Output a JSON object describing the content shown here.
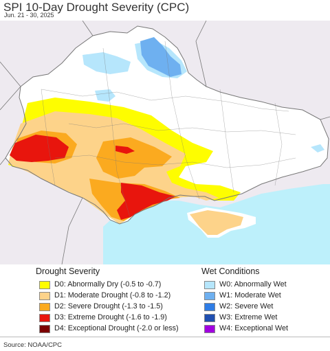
{
  "header": {
    "title": "SPI 10-Day Drought Severity (CPC)",
    "subtitle": "Jun. 21 - 30, 2025"
  },
  "colors": {
    "land": "#ffffff",
    "outside": "#eeeaf0",
    "sea": "#bdf0fb",
    "border": "#777777",
    "D0": "#fefd00",
    "D1": "#fdd38a",
    "D2": "#fbaa1f",
    "D3": "#e8150d",
    "D4": "#7c0101",
    "W0": "#b6e6fc",
    "W1": "#6eb0f0",
    "W2": "#2f7de5",
    "W3": "#1f4fb0",
    "W4": "#a100e0"
  },
  "legend": {
    "drought": {
      "heading": "Drought Severity",
      "items": [
        {
          "code": "D0",
          "label": "D0: Abnormally Dry (-0.5 to -0.7)",
          "color": "#fefd00"
        },
        {
          "code": "D1",
          "label": "D1: Moderate Drought (-0.8 to -1.2)",
          "color": "#fdd38a"
        },
        {
          "code": "D2",
          "label": "D2: Severe Drought (-1.3 to -1.5)",
          "color": "#fbaa1f"
        },
        {
          "code": "D3",
          "label": "D3: Extreme Drought (-1.6 to -1.9)",
          "color": "#e8150d"
        },
        {
          "code": "D4",
          "label": "D4: Exceptional Drought (-2.0 or less)",
          "color": "#7c0101"
        }
      ]
    },
    "wet": {
      "heading": "Wet Conditions",
      "items": [
        {
          "code": "W0",
          "label": "W0: Abnormally Wet",
          "color": "#b6e6fc"
        },
        {
          "code": "W1",
          "label": "W1: Moderate Wet",
          "color": "#6eb0f0"
        },
        {
          "code": "W2",
          "label": "W2: Severe Wet",
          "color": "#2f7de5"
        },
        {
          "code": "W3",
          "label": "W3: Extreme Wet",
          "color": "#1f4fb0"
        },
        {
          "code": "W4",
          "label": "W4: Exceptional Wet",
          "color": "#a100e0"
        }
      ]
    }
  },
  "footer": {
    "source": "Source: NOAA/CPC"
  }
}
